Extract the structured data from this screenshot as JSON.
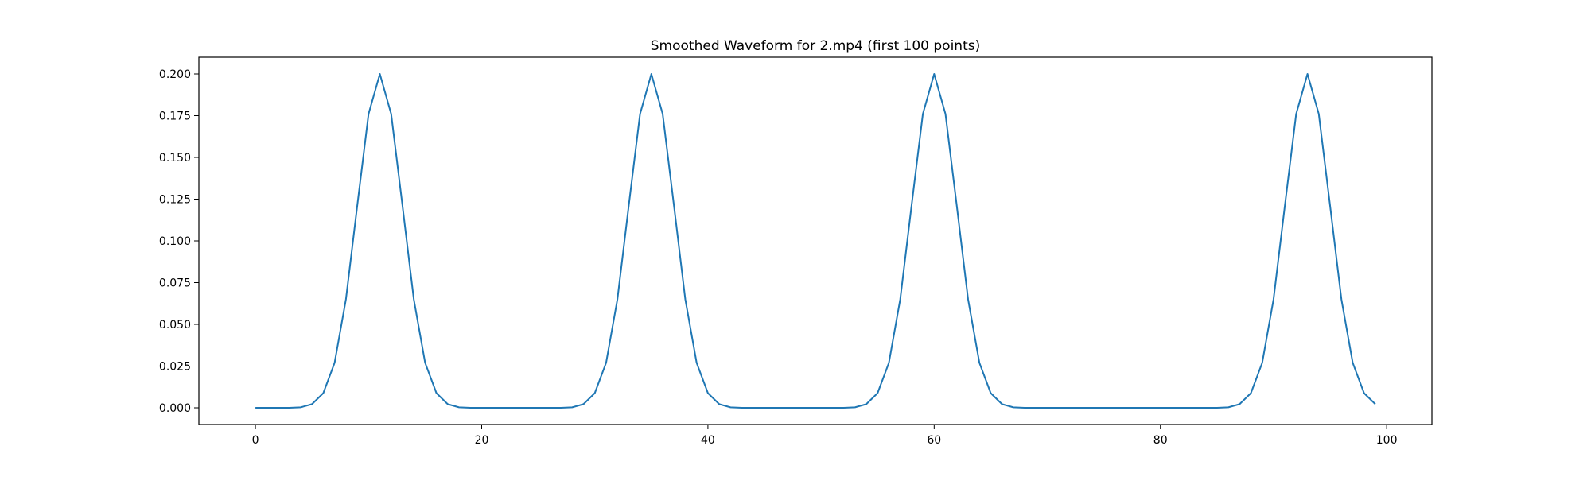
{
  "chart_data": {
    "type": "line",
    "title": "Smoothed Waveform for 2.mp4 (first 100 points)",
    "xlabel": "",
    "ylabel": "",
    "xlim": [
      -5,
      104
    ],
    "ylim": [
      -0.01,
      0.21
    ],
    "xticks": [
      0,
      20,
      40,
      60,
      80,
      100
    ],
    "yticks": [
      0.0,
      0.025,
      0.05,
      0.075,
      0.1,
      0.125,
      0.15,
      0.175,
      0.2
    ],
    "xtick_labels": [
      "0",
      "20",
      "40",
      "60",
      "80",
      "100"
    ],
    "ytick_labels": [
      "0.000",
      "0.025",
      "0.050",
      "0.075",
      "0.100",
      "0.125",
      "0.150",
      "0.175",
      "0.200"
    ],
    "grid": false,
    "legend": "none",
    "color": "#1f77b4",
    "series": [
      {
        "x": [
          0,
          1,
          2,
          3,
          4,
          5,
          6,
          7,
          8,
          9,
          10,
          11,
          12,
          13,
          14,
          15,
          16,
          17,
          18,
          19,
          20,
          21,
          22,
          23,
          24,
          25,
          26,
          27,
          28,
          29,
          30,
          31,
          32,
          33,
          34,
          35,
          36,
          37,
          38,
          39,
          40,
          41,
          42,
          43,
          44,
          45,
          46,
          47,
          48,
          49,
          50,
          51,
          52,
          53,
          54,
          55,
          56,
          57,
          58,
          59,
          60,
          61,
          62,
          63,
          64,
          65,
          66,
          67,
          68,
          69,
          70,
          71,
          72,
          73,
          74,
          75,
          76,
          77,
          78,
          79,
          80,
          81,
          82,
          83,
          84,
          85,
          86,
          87,
          88,
          89,
          90,
          91,
          92,
          93,
          94,
          95,
          96,
          97,
          98,
          99
        ],
        "values": [
          0.0,
          0.0,
          0.0,
          0.0,
          0.0003,
          0.0022,
          0.0088,
          0.027,
          0.065,
          0.121,
          0.176,
          0.2,
          0.176,
          0.121,
          0.065,
          0.027,
          0.0088,
          0.0022,
          0.0003,
          0.0,
          0.0,
          0.0,
          0.0,
          0.0,
          0.0,
          0.0,
          0.0,
          0.0,
          0.0003,
          0.0022,
          0.0088,
          0.027,
          0.065,
          0.121,
          0.176,
          0.2,
          0.176,
          0.121,
          0.065,
          0.027,
          0.0088,
          0.0022,
          0.0003,
          0.0,
          0.0,
          0.0,
          0.0,
          0.0,
          0.0,
          0.0,
          0.0,
          0.0,
          0.0,
          0.0003,
          0.0022,
          0.0088,
          0.027,
          0.065,
          0.121,
          0.176,
          0.2,
          0.176,
          0.121,
          0.065,
          0.027,
          0.0088,
          0.0022,
          0.0003,
          0.0,
          0.0,
          0.0,
          0.0,
          0.0,
          0.0,
          0.0,
          0.0,
          0.0,
          0.0,
          0.0,
          0.0,
          0.0,
          0.0,
          0.0,
          0.0,
          0.0,
          0.0,
          0.0003,
          0.0022,
          0.0088,
          0.027,
          0.065,
          0.121,
          0.176,
          0.2,
          0.176,
          0.121,
          0.065,
          0.027,
          0.0088,
          0.0022
        ]
      }
    ]
  }
}
